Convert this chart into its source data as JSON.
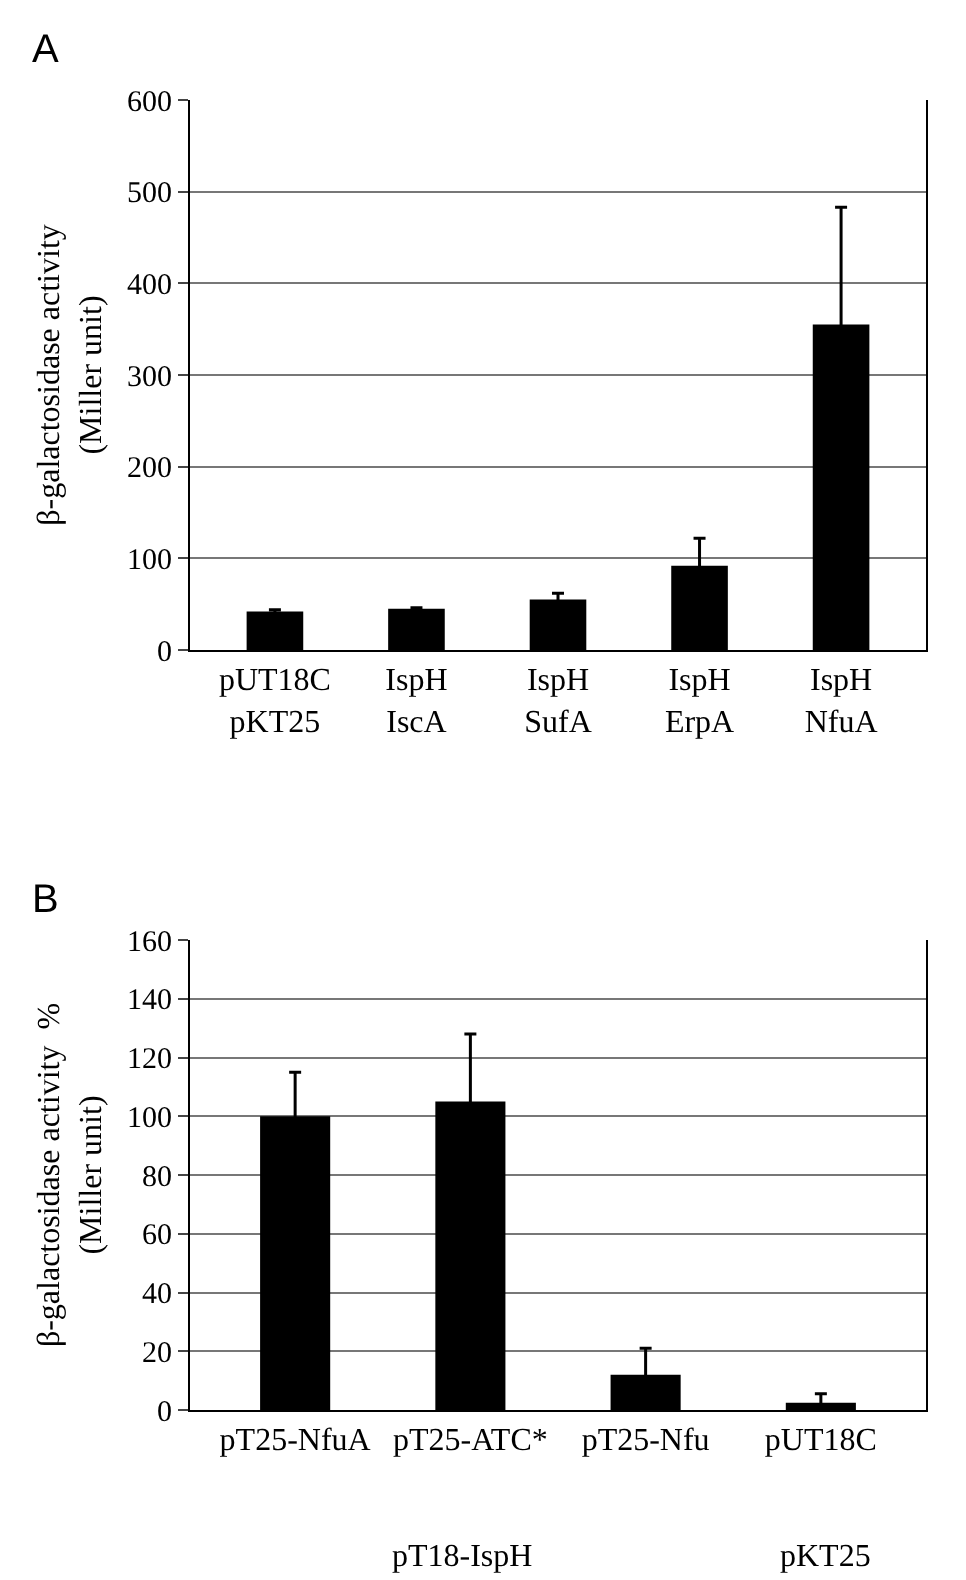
{
  "chart_data": [
    {
      "type": "bar",
      "ylabel": "β-galactosidase activity\n(Miller unit)",
      "categories": [
        "pUT18C\npKT25",
        "IspH\nIscA",
        "IspH\nSufA",
        "IspH\nErpA",
        "IspH\nNfuA"
      ],
      "values": [
        42,
        45,
        55,
        92,
        355
      ],
      "errors": [
        2,
        1,
        7,
        30,
        128
      ],
      "color": "#000000",
      "ylim": [
        0,
        600
      ],
      "yticks": [
        0,
        100,
        200,
        300,
        400,
        500,
        600
      ],
      "grid": "y",
      "annotations": [
        "A"
      ]
    },
    {
      "type": "bar",
      "ylabel": "β-galactosidase activity  %\n(Miller unit)",
      "categories": [
        "pT25-NfuA",
        "pT25-ATC*",
        "pT25-Nfu",
        "pUT18C"
      ],
      "values": [
        100,
        105,
        12,
        2.5
      ],
      "errors": [
        15,
        23,
        9,
        3
      ],
      "color": "#000000",
      "ylim": [
        0,
        160
      ],
      "yticks": [
        0,
        20,
        40,
        60,
        80,
        100,
        120,
        140,
        160
      ],
      "grid": "y",
      "annotations": [
        "B",
        "pT18-IspH",
        "pKT25"
      ]
    }
  ]
}
